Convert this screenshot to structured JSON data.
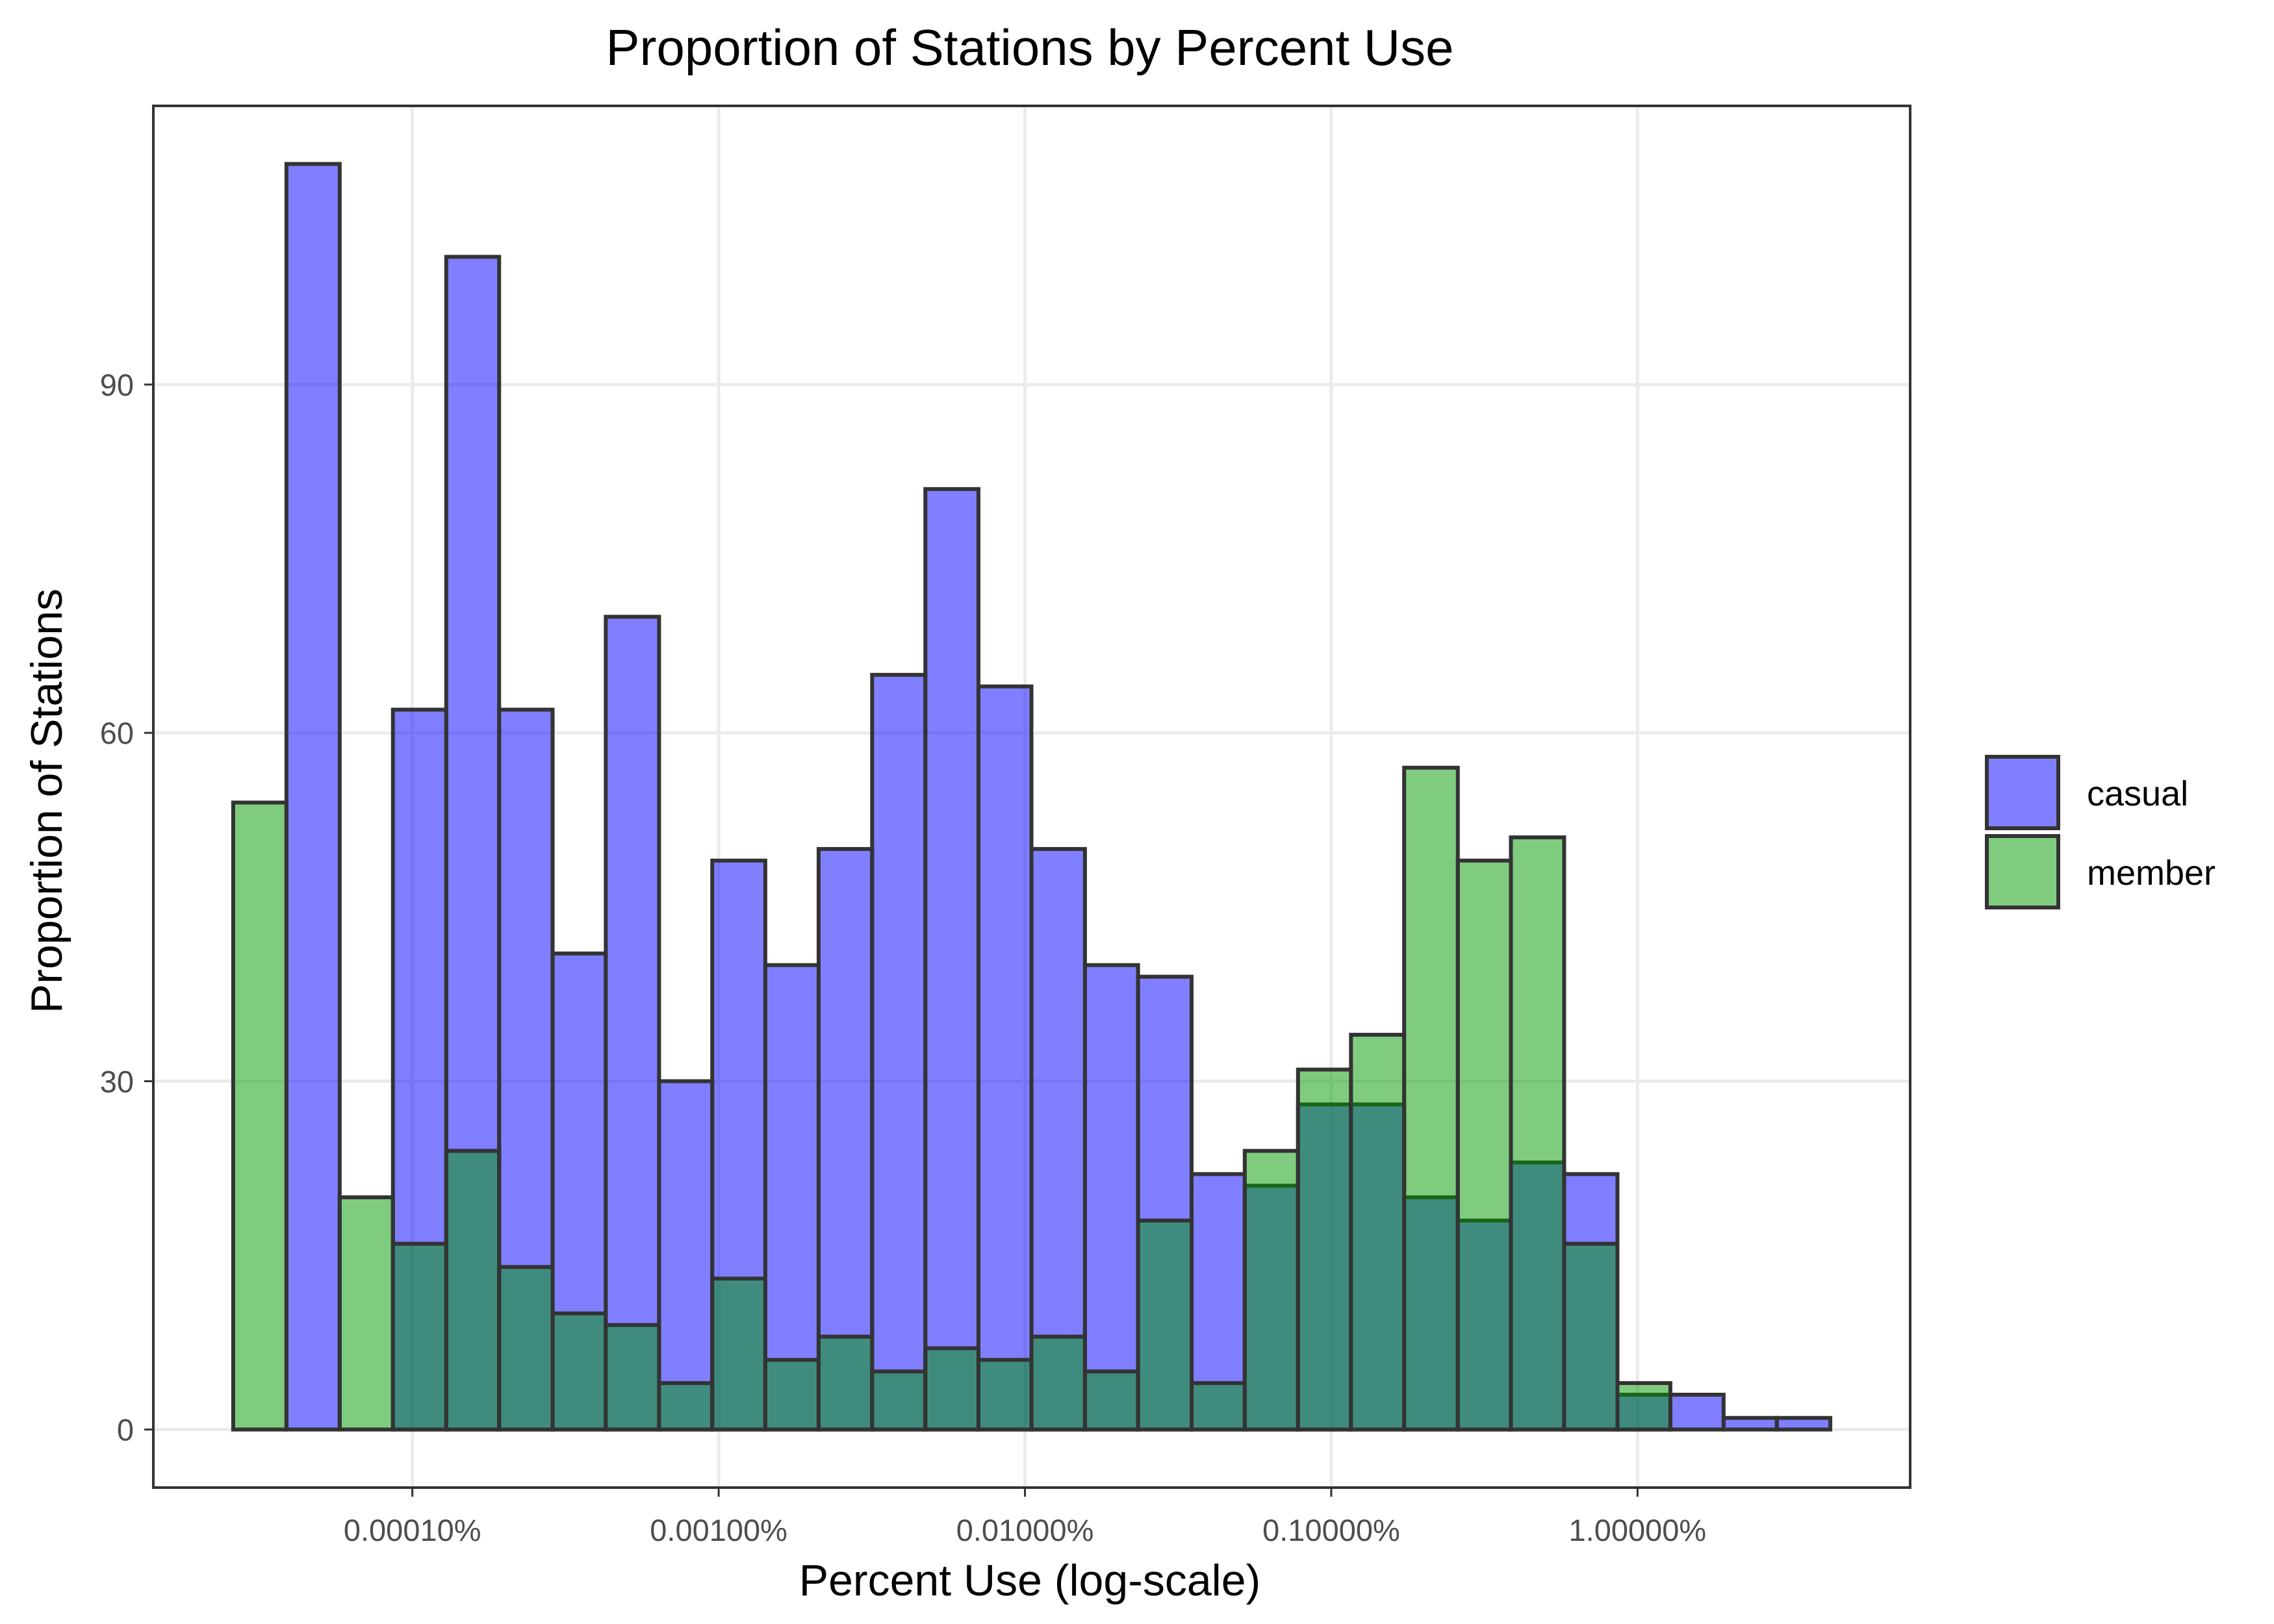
{
  "chart_data": {
    "type": "bar",
    "subtype": "overlapping histogram",
    "title": "Proportion of Stations by Percent Use",
    "xlabel": "Percent Use (log-scale)",
    "ylabel": "Proportion of Stations",
    "x_scale": "log10",
    "x_unit": "percent use",
    "ylim": [
      -5,
      114
    ],
    "grid": true,
    "legend_position": "right",
    "xticks": [
      {
        "value": 0.0001,
        "label": "0.00010%"
      },
      {
        "value": 0.001,
        "label": "0.00100%"
      },
      {
        "value": 0.01,
        "label": "0.01000%"
      },
      {
        "value": 0.1,
        "label": "0.10000%"
      },
      {
        "value": 1,
        "label": "1.00000%"
      }
    ],
    "yticks": [
      {
        "value": 0,
        "label": "0"
      },
      {
        "value": 30,
        "label": "30"
      },
      {
        "value": 60,
        "label": "60"
      },
      {
        "value": 90,
        "label": "90"
      }
    ],
    "bin_edges": [
      2.6e-05,
      3.88e-05,
      5.79e-05,
      8.64e-05,
      0.000129,
      0.000192,
      0.000287,
      0.000428,
      0.000639,
      0.000953,
      0.00142,
      0.00212,
      0.00317,
      0.00473,
      0.00705,
      0.0105,
      0.0157,
      0.0234,
      0.035,
      0.0522,
      0.0779,
      0.116,
      0.173,
      0.259,
      0.386,
      0.576,
      0.86,
      1.28,
      1.91,
      2.85,
      4.26
    ],
    "series": [
      {
        "name": "casual",
        "color": "#0000ff",
        "values": [
          0,
          109,
          0,
          62,
          101,
          62,
          41,
          70,
          30,
          49,
          40,
          50,
          65,
          81,
          64,
          50,
          40,
          39,
          22,
          21,
          28,
          28,
          20,
          18,
          23,
          22,
          3,
          3,
          1,
          1
        ]
      },
      {
        "name": "member",
        "color": "#009900",
        "values": [
          54,
          0,
          20,
          16,
          24,
          14,
          10,
          9,
          4,
          13,
          6,
          8,
          5,
          7,
          6,
          8,
          5,
          18,
          4,
          24,
          31,
          34,
          57,
          49,
          51,
          16,
          4,
          0,
          0,
          0
        ]
      }
    ]
  }
}
